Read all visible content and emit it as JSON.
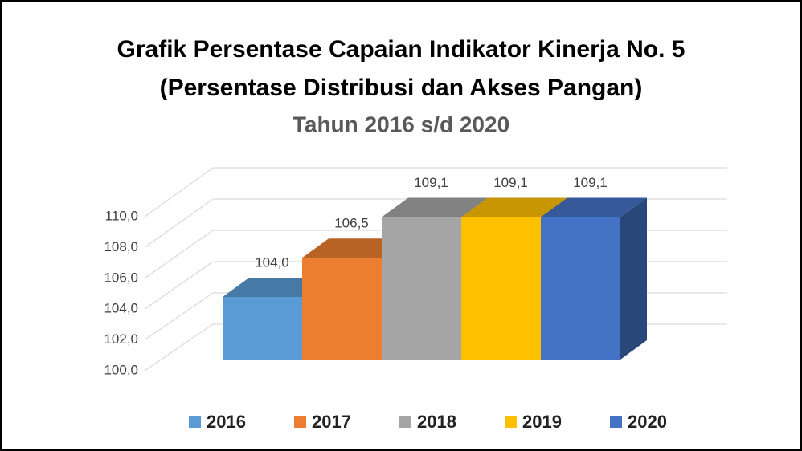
{
  "chart_data": {
    "type": "bar3d",
    "title": [
      "Grafik Persentase Capaian Indikator Kinerja No. 5",
      "(Persentase Distribusi dan Akses Pangan)"
    ],
    "subtitle": "Tahun 2016 s/d 2020",
    "series": [
      {
        "name": "2016",
        "color": "#5b9bd5",
        "values": [
          104.0
        ],
        "value_labels": [
          "104,0"
        ]
      },
      {
        "name": "2017",
        "color": "#ed7d31",
        "values": [
          106.5
        ],
        "value_labels": [
          "106,5"
        ]
      },
      {
        "name": "2018",
        "color": "#a5a5a5",
        "values": [
          109.1
        ],
        "value_labels": [
          "109,1"
        ]
      },
      {
        "name": "2019",
        "color": "#ffc000",
        "values": [
          109.1
        ],
        "value_labels": [
          "109,1"
        ]
      },
      {
        "name": "2020",
        "color": "#4472c4",
        "values": [
          109.1
        ],
        "value_labels": [
          "109,1"
        ]
      }
    ],
    "ylim": [
      100,
      110
    ],
    "yticks": [
      {
        "value": 100,
        "label": "100,0"
      },
      {
        "value": 102,
        "label": "102,0"
      },
      {
        "value": 104,
        "label": "104,0"
      },
      {
        "value": 106,
        "label": "106,0"
      },
      {
        "value": 108,
        "label": "108,0"
      },
      {
        "value": 110,
        "label": "110,0"
      }
    ],
    "grid": true,
    "legend": "bottom"
  }
}
